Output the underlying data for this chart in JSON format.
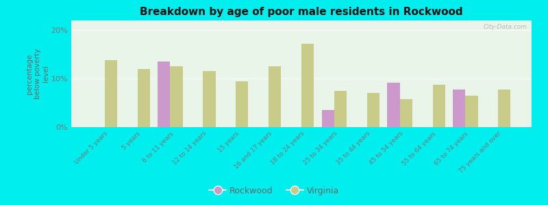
{
  "title": "Breakdown by age of poor male residents in Rockwood",
  "ylabel": "percentage\nbelow poverty\nlevel",
  "categories": [
    "Under 5 years",
    "5 years",
    "6 to 11 years",
    "12 to 14 years",
    "15 years",
    "16 and 17 years",
    "18 to 24 years",
    "25 to 34 years",
    "35 to 44 years",
    "45 to 54 years",
    "55 to 64 years",
    "65 to 74 years",
    "75 years and over"
  ],
  "rockwood": [
    0,
    0,
    13.5,
    0,
    0,
    0,
    0,
    3.5,
    0,
    9.2,
    0,
    7.8,
    0
  ],
  "virginia": [
    13.8,
    12.0,
    12.5,
    11.5,
    9.5,
    12.5,
    17.2,
    7.5,
    7.0,
    5.8,
    8.8,
    6.5,
    7.8
  ],
  "rockwood_color": "#cc99cc",
  "virginia_color": "#c8cc88",
  "title_color": "#111111",
  "ylim": [
    0,
    22
  ],
  "yticks": [
    0,
    10,
    20
  ],
  "ytick_labels": [
    "0%",
    "10%",
    "20%"
  ],
  "bar_width": 0.38,
  "watermark": "City-Data.com",
  "outer_bg": "#00eeee",
  "plot_bg_color": "#e8f5e8",
  "tick_color": "#777777",
  "label_color": "#666666"
}
